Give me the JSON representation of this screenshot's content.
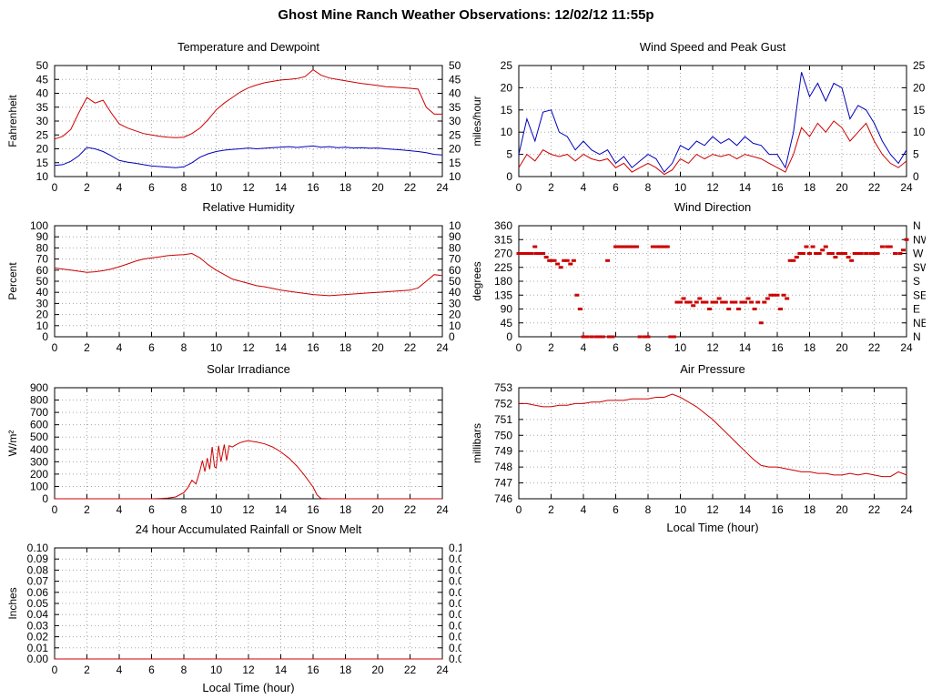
{
  "page_title": "Ghost Mine Ranch Weather Observations: 12/02/12 11:55p",
  "colors": {
    "red": "#cc0000",
    "blue": "#0000bb",
    "grid": "#a8a8a8",
    "axis": "#000000"
  },
  "x_halfhour": [
    0,
    0.5,
    1,
    1.5,
    2,
    2.5,
    3,
    3.5,
    4,
    4.5,
    5,
    5.5,
    6,
    6.5,
    7,
    7.5,
    8,
    8.5,
    9,
    9.5,
    10,
    10.5,
    11,
    11.5,
    12,
    12.5,
    13,
    13.5,
    14,
    14.5,
    15,
    15.5,
    16,
    16.5,
    17,
    17.5,
    18,
    18.5,
    19,
    19.5,
    20,
    20.5,
    21,
    21.5,
    22,
    22.5,
    23,
    23.5,
    24
  ],
  "xticks": {
    "vals": [
      0,
      2,
      4,
      6,
      8,
      10,
      12,
      14,
      16,
      18,
      20,
      22,
      24
    ],
    "labels": [
      "0",
      "2",
      "4",
      "6",
      "8",
      "10",
      "12",
      "14",
      "16",
      "18",
      "20",
      "22",
      "24"
    ]
  },
  "chart_data": [
    {
      "id": "temperature-dewpoint",
      "title": "Temperature and Dewpoint",
      "type": "line",
      "ylabel": "Fahrenheit",
      "xlabel": "",
      "xlim": [
        0,
        24
      ],
      "ylim": [
        10,
        50
      ],
      "ytick_vals": [
        10,
        15,
        20,
        25,
        30,
        35,
        40,
        45,
        50
      ],
      "ytick_labels": [
        "10",
        "15",
        "20",
        "25",
        "30",
        "35",
        "40",
        "45",
        "50"
      ],
      "right_labels": "same",
      "series": [
        {
          "name": "temperature",
          "color": "red",
          "x_key": "x_halfhour",
          "y": [
            23.5,
            24.5,
            27,
            33,
            38.5,
            36.5,
            37.5,
            33,
            29,
            27.5,
            26.5,
            25.5,
            25,
            24.5,
            24.2,
            24,
            24.2,
            25.5,
            27.5,
            30.5,
            34,
            36.5,
            38.5,
            40.5,
            42,
            43,
            43.8,
            44.3,
            44.8,
            45,
            45.3,
            46,
            48.5,
            46.5,
            45.5,
            45,
            44.5,
            44,
            43.5,
            43.2,
            42.8,
            42.4,
            42.2,
            42,
            41.8,
            41.5,
            35,
            32.5,
            32.5
          ]
        },
        {
          "name": "dewpoint",
          "color": "blue",
          "x_key": "x_halfhour",
          "y": [
            14,
            14.3,
            15.5,
            17.5,
            20.5,
            20,
            19,
            17.5,
            15.8,
            15.2,
            14.8,
            14.3,
            13.8,
            13.6,
            13.4,
            13.2,
            13.5,
            15,
            17,
            18.2,
            19,
            19.5,
            19.8,
            20,
            20.3,
            20,
            20.2,
            20.4,
            20.6,
            20.8,
            20.5,
            20.8,
            21,
            20.6,
            20.8,
            20.4,
            20.6,
            20.3,
            20.4,
            20.2,
            20.3,
            20,
            19.8,
            19.6,
            19.3,
            19,
            18.6,
            18,
            17.8
          ]
        }
      ]
    },
    {
      "id": "wind-speed-gust",
      "title": "Wind Speed and Peak Gust",
      "type": "line",
      "ylabel": "miles/hour",
      "xlabel": "",
      "xlim": [
        0,
        24
      ],
      "ylim": [
        0,
        25
      ],
      "ytick_vals": [
        0,
        5,
        10,
        15,
        20,
        25
      ],
      "ytick_labels": [
        "0",
        "5",
        "10",
        "15",
        "20",
        "25"
      ],
      "right_labels": "same",
      "series": [
        {
          "name": "peak-gust",
          "color": "blue",
          "x_key": "x_halfhour",
          "y": [
            5,
            13,
            8,
            14.5,
            15,
            10,
            9,
            6,
            8,
            6,
            5,
            6,
            3,
            4.5,
            2,
            3.5,
            5,
            4,
            1,
            3,
            7,
            6,
            8,
            7,
            9,
            7.5,
            8.5,
            7,
            9,
            7.5,
            7,
            5,
            5,
            2,
            10,
            23.5,
            18,
            21,
            17,
            21,
            20,
            13,
            16,
            15,
            12,
            8,
            5,
            3,
            6
          ]
        },
        {
          "name": "wind-speed",
          "color": "red",
          "x_key": "x_halfhour",
          "y": [
            2,
            5,
            3.5,
            6,
            5,
            4.5,
            5,
            3.5,
            5,
            4,
            3.5,
            4,
            2,
            3,
            1,
            2,
            3,
            2,
            0.5,
            1.5,
            4,
            3,
            5,
            4,
            5,
            4.5,
            5,
            4,
            5,
            4.5,
            4,
            3,
            2,
            1,
            5,
            11,
            9,
            12,
            10,
            12.5,
            11,
            8,
            10,
            12,
            8,
            5,
            3,
            2,
            3.5
          ]
        }
      ]
    },
    {
      "id": "relative-humidity",
      "title": "Relative Humidity",
      "type": "line",
      "ylabel": "Percent",
      "xlabel": "",
      "xlim": [
        0,
        24
      ],
      "ylim": [
        0,
        100
      ],
      "ytick_vals": [
        0,
        10,
        20,
        30,
        40,
        50,
        60,
        70,
        80,
        90,
        100
      ],
      "ytick_labels": [
        "0",
        "10",
        "20",
        "30",
        "40",
        "50",
        "60",
        "70",
        "80",
        "90",
        "100"
      ],
      "right_labels": "same",
      "series": [
        {
          "name": "relative-humidity",
          "color": "red",
          "x_key": "x_halfhour",
          "y": [
            62,
            61,
            60,
            59,
            58,
            58.5,
            59.5,
            61,
            63,
            65.5,
            68,
            70,
            71,
            72,
            73,
            73.5,
            74,
            75,
            71,
            65,
            60,
            56,
            52,
            50,
            48,
            46,
            45,
            43.5,
            42,
            41,
            40,
            39,
            38,
            37.5,
            37,
            37.5,
            38,
            38.5,
            39,
            39.5,
            40,
            40.5,
            41,
            41.5,
            42,
            44,
            50,
            56,
            55
          ]
        }
      ]
    },
    {
      "id": "wind-direction",
      "title": "Wind Direction",
      "type": "scatter",
      "ylabel": "degrees",
      "xlabel": "",
      "xlim": [
        0,
        24
      ],
      "ylim": [
        0,
        360
      ],
      "ytick_vals": [
        0,
        45,
        90,
        135,
        180,
        225,
        270,
        315,
        360
      ],
      "ytick_labels": [
        "0",
        "45",
        "90",
        "135",
        "180",
        "225",
        "270",
        "315",
        "360"
      ],
      "right_labels": [
        "N",
        "NE",
        "E",
        "SE",
        "S",
        "SW",
        "W",
        "NW",
        "N"
      ],
      "series": [
        {
          "name": "wind-direction",
          "color": "red",
          "x": [
            0,
            0.2,
            0.4,
            0.6,
            0.8,
            1.0,
            1.1,
            1.3,
            1.5,
            1.7,
            1.9,
            2.0,
            2.2,
            2.4,
            2.6,
            2.8,
            3.0,
            3.2,
            3.4,
            3.6,
            3.8,
            4.0,
            4.2,
            4.5,
            4.8,
            5.0,
            5.2,
            5.5,
            5.6,
            5.8,
            6.0,
            6.1,
            6.2,
            6.3,
            6.4,
            6.5,
            6.6,
            6.7,
            6.8,
            6.9,
            7.0,
            7.1,
            7.2,
            7.3,
            7.5,
            7.8,
            8.0,
            8.3,
            8.5,
            8.6,
            8.7,
            8.8,
            8.9,
            9.0,
            9.1,
            9.2,
            9.4,
            9.6,
            9.8,
            10.0,
            10.2,
            10.4,
            10.6,
            10.8,
            11.0,
            11.2,
            11.4,
            11.6,
            11.8,
            12.0,
            12.2,
            12.4,
            12.6,
            12.8,
            13.0,
            13.2,
            13.4,
            13.6,
            13.8,
            14.0,
            14.2,
            14.4,
            14.6,
            14.8,
            15.0,
            15.2,
            15.4,
            15.6,
            15.8,
            16.0,
            16.2,
            16.4,
            16.6,
            16.8,
            17.0,
            17.2,
            17.4,
            17.6,
            17.8,
            18.0,
            18.2,
            18.4,
            18.6,
            18.8,
            19.0,
            19.2,
            19.4,
            19.6,
            19.8,
            20.0,
            20.2,
            20.4,
            20.6,
            20.8,
            21.0,
            21.2,
            21.5,
            21.8,
            22.0,
            22.2,
            22.5,
            22.8,
            23.0,
            23.3,
            23.6,
            23.8,
            24.0
          ],
          "y": [
            270,
            270,
            270,
            270,
            270,
            292,
            270,
            270,
            270,
            258,
            247,
            247,
            247,
            236,
            225,
            247,
            247,
            236,
            247,
            135,
            90,
            0,
            0,
            0,
            0,
            0,
            0,
            247,
            0,
            0,
            292,
            292,
            292,
            292,
            292,
            292,
            292,
            292,
            292,
            292,
            292,
            292,
            292,
            292,
            0,
            0,
            0,
            292,
            292,
            292,
            292,
            292,
            292,
            292,
            292,
            292,
            0,
            0,
            112,
            112,
            124,
            112,
            112,
            101,
            112,
            124,
            112,
            112,
            90,
            112,
            112,
            124,
            112,
            112,
            90,
            112,
            112,
            90,
            112,
            112,
            124,
            112,
            90,
            112,
            45,
            112,
            124,
            135,
            135,
            135,
            90,
            135,
            124,
            247,
            247,
            258,
            270,
            270,
            292,
            270,
            292,
            270,
            270,
            281,
            292,
            270,
            270,
            258,
            270,
            270,
            270,
            258,
            247,
            270,
            270,
            270,
            270,
            270,
            270,
            270,
            292,
            292,
            292,
            270,
            270,
            281,
            315
          ]
        }
      ]
    },
    {
      "id": "solar-irradiance",
      "title": "Solar Irradiance",
      "type": "line",
      "ylabel": "W/m²",
      "xlabel": "",
      "xlim": [
        0,
        24
      ],
      "ylim": [
        0,
        900
      ],
      "ytick_vals": [
        0,
        100,
        200,
        300,
        400,
        500,
        600,
        700,
        800,
        900
      ],
      "ytick_labels": [
        "0",
        "100",
        "200",
        "300",
        "400",
        "500",
        "600",
        "700",
        "800",
        "900"
      ],
      "right_labels": "none",
      "series": [
        {
          "name": "solar-irradiance",
          "color": "red",
          "x": [
            0,
            1,
            2,
            3,
            4,
            5,
            6,
            6.5,
            7,
            7.5,
            8,
            8.25,
            8.5,
            8.75,
            9,
            9.15,
            9.3,
            9.45,
            9.6,
            9.75,
            9.9,
            10,
            10.15,
            10.3,
            10.5,
            10.65,
            10.8,
            11,
            11.25,
            11.5,
            11.75,
            12,
            12.25,
            12.5,
            13,
            13.5,
            14,
            14.5,
            15,
            15.5,
            16,
            16.25,
            16.5,
            17,
            18,
            19,
            20,
            21,
            22,
            23,
            24
          ],
          "y": [
            0,
            0,
            0,
            0,
            0,
            0,
            0,
            2,
            5,
            15,
            50,
            90,
            150,
            120,
            230,
            310,
            220,
            330,
            240,
            420,
            260,
            250,
            430,
            300,
            440,
            310,
            430,
            420,
            440,
            455,
            465,
            470,
            465,
            460,
            445,
            420,
            380,
            330,
            265,
            185,
            95,
            30,
            2,
            0,
            0,
            0,
            0,
            0,
            0,
            0,
            0
          ]
        }
      ]
    },
    {
      "id": "air-pressure",
      "title": "Air Pressure",
      "type": "line",
      "ylabel": "millibars",
      "xlabel": "Local Time (hour)",
      "xlim": [
        0,
        24
      ],
      "ylim": [
        746,
        753
      ],
      "ytick_vals": [
        746,
        747,
        748,
        749,
        750,
        751,
        752,
        753
      ],
      "ytick_labels": [
        "746",
        "747",
        "748",
        "749",
        "750",
        "751",
        "752",
        "753"
      ],
      "right_labels": "none",
      "series": [
        {
          "name": "air-pressure",
          "color": "red",
          "x_key": "x_halfhour",
          "y": [
            752,
            752,
            751.9,
            751.8,
            751.8,
            751.9,
            751.9,
            752,
            752,
            752.1,
            752.1,
            752.2,
            752.2,
            752.2,
            752.3,
            752.3,
            752.3,
            752.4,
            752.4,
            752.6,
            752.4,
            752.1,
            751.8,
            751.4,
            751,
            750.5,
            750,
            749.5,
            749,
            748.5,
            748.1,
            748,
            748,
            747.9,
            747.8,
            747.7,
            747.7,
            747.6,
            747.6,
            747.5,
            747.5,
            747.6,
            747.5,
            747.6,
            747.5,
            747.4,
            747.4,
            747.7,
            747.5
          ]
        }
      ]
    },
    {
      "id": "rainfall",
      "title": "24 hour Accumulated Rainfall or Snow Melt",
      "type": "line",
      "ylabel": "Inches",
      "xlabel": "Local Time (hour)",
      "xlim": [
        0,
        24
      ],
      "ylim": [
        0,
        0.1
      ],
      "ytick_vals": [
        0,
        0.01,
        0.02,
        0.03,
        0.04,
        0.05,
        0.06,
        0.07,
        0.08,
        0.09,
        0.1
      ],
      "ytick_labels": [
        "0.00",
        "0.01",
        "0.02",
        "0.03",
        "0.04",
        "0.05",
        "0.06",
        "0.07",
        "0.08",
        "0.09",
        "0.10"
      ],
      "right_labels": "same",
      "series": [
        {
          "name": "rainfall",
          "color": "red",
          "x": [
            0,
            24
          ],
          "y": [
            0,
            0
          ]
        }
      ]
    }
  ]
}
